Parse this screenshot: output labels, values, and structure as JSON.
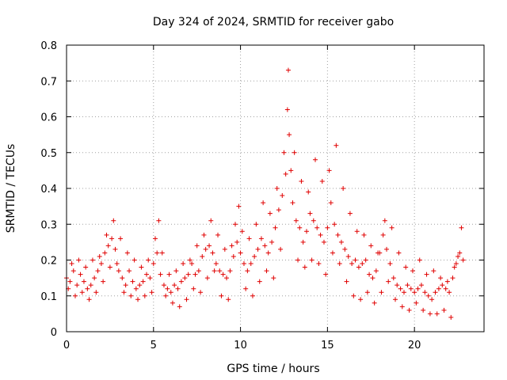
{
  "chart_data": {
    "type": "scatter",
    "title": "Day 324 of 2024, SRMTID for receiver gabo",
    "xlabel": "GPS time / hours",
    "ylabel": "SRMTID / TECUs",
    "xlim": [
      0,
      24
    ],
    "ylim": [
      0,
      0.8
    ],
    "xticks": [
      0,
      5,
      10,
      15,
      20
    ],
    "xtick_labels": [
      "0",
      "5",
      "10",
      "15",
      "20"
    ],
    "yticks": [
      0,
      0.1,
      0.2,
      0.3,
      0.4,
      0.5,
      0.6,
      0.7,
      0.8
    ],
    "ytick_labels": [
      "0",
      "0.1",
      "0.2",
      "0.3",
      "0.4",
      "0.5",
      "0.6",
      "0.7",
      "0.8"
    ],
    "grid": true,
    "marker": "plus",
    "color": "#e00000",
    "series": [
      {
        "name": "SRMTID",
        "x": [
          0.0,
          0.2,
          0.4,
          0.6,
          0.8,
          1.0,
          1.2,
          1.4,
          1.6,
          1.8,
          2.0,
          2.2,
          2.4,
          2.6,
          2.8,
          3.0,
          3.2,
          3.4,
          3.6,
          3.8,
          4.0,
          4.2,
          4.4,
          4.6,
          4.8,
          5.0,
          5.2,
          5.4,
          5.6,
          5.8,
          6.0,
          6.2,
          6.4,
          6.6,
          6.8,
          7.0,
          7.2,
          7.4,
          7.6,
          7.8,
          8.0,
          8.2,
          8.4,
          8.6,
          8.8,
          9.0,
          9.2,
          9.4,
          9.6,
          9.8,
          10.0,
          10.2,
          10.4,
          10.6,
          10.8,
          11.0,
          11.2,
          11.4,
          11.6,
          11.8,
          12.0,
          12.2,
          12.4,
          12.6,
          12.7,
          12.8,
          13.0,
          13.2,
          13.4,
          13.6,
          13.8,
          14.0,
          14.2,
          14.4,
          14.6,
          14.8,
          15.0,
          15.2,
          15.4,
          15.6,
          15.8,
          16.0,
          16.2,
          16.4,
          16.6,
          16.8,
          17.0,
          17.2,
          17.4,
          17.6,
          17.8,
          18.0,
          18.2,
          18.4,
          18.6,
          18.8,
          19.0,
          19.2,
          19.4,
          19.6,
          19.8,
          20.0,
          20.2,
          20.4,
          20.6,
          20.8,
          21.0,
          21.2,
          21.4,
          21.6,
          21.8,
          22.0,
          22.2,
          22.4,
          22.6,
          22.8
        ],
        "y": [
          0.15,
          0.14,
          0.17,
          0.13,
          0.16,
          0.14,
          0.12,
          0.13,
          0.15,
          0.17,
          0.19,
          0.22,
          0.24,
          0.26,
          0.23,
          0.17,
          0.15,
          0.13,
          0.17,
          0.14,
          0.12,
          0.13,
          0.14,
          0.16,
          0.15,
          0.19,
          0.22,
          0.16,
          0.13,
          0.12,
          0.11,
          0.13,
          0.12,
          0.14,
          0.15,
          0.16,
          0.19,
          0.16,
          0.17,
          0.21,
          0.23,
          0.24,
          0.22,
          0.19,
          0.17,
          0.16,
          0.15,
          0.17,
          0.21,
          0.25,
          0.22,
          0.19,
          0.17,
          0.19,
          0.21,
          0.23,
          0.26,
          0.24,
          0.22,
          0.25,
          0.29,
          0.34,
          0.38,
          0.44,
          0.62,
          0.55,
          0.36,
          0.31,
          0.29,
          0.25,
          0.28,
          0.33,
          0.31,
          0.29,
          0.27,
          0.25,
          0.29,
          0.36,
          0.3,
          0.27,
          0.25,
          0.23,
          0.21,
          0.19,
          0.2,
          0.18,
          0.19,
          0.2,
          0.16,
          0.15,
          0.17,
          0.22,
          0.27,
          0.23,
          0.19,
          0.15,
          0.13,
          0.12,
          0.11,
          0.13,
          0.12,
          0.11,
          0.12,
          0.13,
          0.11,
          0.1,
          0.09,
          0.11,
          0.12,
          0.13,
          0.12,
          0.11,
          0.15,
          0.19,
          0.22,
          0.2
        ]
      },
      {
        "name": "SRMTID",
        "x": [
          0.1,
          0.3,
          0.5,
          0.7,
          0.9,
          1.1,
          1.3,
          1.5,
          1.7,
          1.9,
          2.1,
          2.3,
          2.5,
          2.7,
          2.9,
          3.1,
          3.3,
          3.5,
          3.7,
          3.9,
          4.1,
          4.3,
          4.5,
          4.7,
          4.9,
          5.1,
          5.3,
          5.5,
          5.7,
          5.9,
          6.1,
          6.3,
          6.5,
          6.7,
          6.9,
          7.1,
          7.3,
          7.5,
          7.7,
          7.9,
          8.1,
          8.3,
          8.5,
          8.7,
          8.9,
          9.1,
          9.3,
          9.5,
          9.7,
          9.9,
          10.1,
          10.3,
          10.5,
          10.7,
          10.9,
          11.1,
          11.3,
          11.5,
          11.7,
          11.9,
          12.1,
          12.3,
          12.5,
          12.75,
          12.9,
          13.1,
          13.3,
          13.5,
          13.7,
          13.9,
          14.1,
          14.3,
          14.5,
          14.7,
          14.9,
          15.1,
          15.3,
          15.5,
          15.7,
          15.9,
          16.1,
          16.3,
          16.5,
          16.7,
          16.9,
          17.1,
          17.3,
          17.5,
          17.7,
          17.9,
          18.1,
          18.3,
          18.5,
          18.7,
          18.9,
          19.1,
          19.3,
          19.5,
          19.7,
          19.9,
          20.1,
          20.3,
          20.5,
          20.7,
          20.9,
          21.1,
          21.3,
          21.5,
          21.7,
          21.9,
          22.1,
          22.3,
          22.5,
          22.7
        ],
        "y": [
          0.12,
          0.19,
          0.1,
          0.2,
          0.11,
          0.18,
          0.09,
          0.2,
          0.11,
          0.21,
          0.14,
          0.27,
          0.18,
          0.31,
          0.19,
          0.26,
          0.11,
          0.22,
          0.1,
          0.2,
          0.09,
          0.18,
          0.1,
          0.2,
          0.11,
          0.26,
          0.31,
          0.22,
          0.1,
          0.16,
          0.08,
          0.17,
          0.07,
          0.19,
          0.09,
          0.2,
          0.12,
          0.24,
          0.11,
          0.27,
          0.15,
          0.31,
          0.17,
          0.27,
          0.1,
          0.23,
          0.09,
          0.24,
          0.3,
          0.35,
          0.28,
          0.12,
          0.26,
          0.1,
          0.3,
          0.14,
          0.36,
          0.17,
          0.33,
          0.15,
          0.4,
          0.23,
          0.5,
          0.73,
          0.45,
          0.5,
          0.2,
          0.42,
          0.18,
          0.39,
          0.2,
          0.48,
          0.19,
          0.42,
          0.16,
          0.45,
          0.22,
          0.52,
          0.19,
          0.4,
          0.14,
          0.33,
          0.1,
          0.28,
          0.09,
          0.27,
          0.11,
          0.24,
          0.08,
          0.22,
          0.11,
          0.31,
          0.14,
          0.29,
          0.09,
          0.22,
          0.07,
          0.18,
          0.06,
          0.17,
          0.08,
          0.2,
          0.06,
          0.16,
          0.05,
          0.17,
          0.05,
          0.15,
          0.06,
          0.14,
          0.04,
          0.18,
          0.21,
          0.29
        ]
      }
    ]
  }
}
